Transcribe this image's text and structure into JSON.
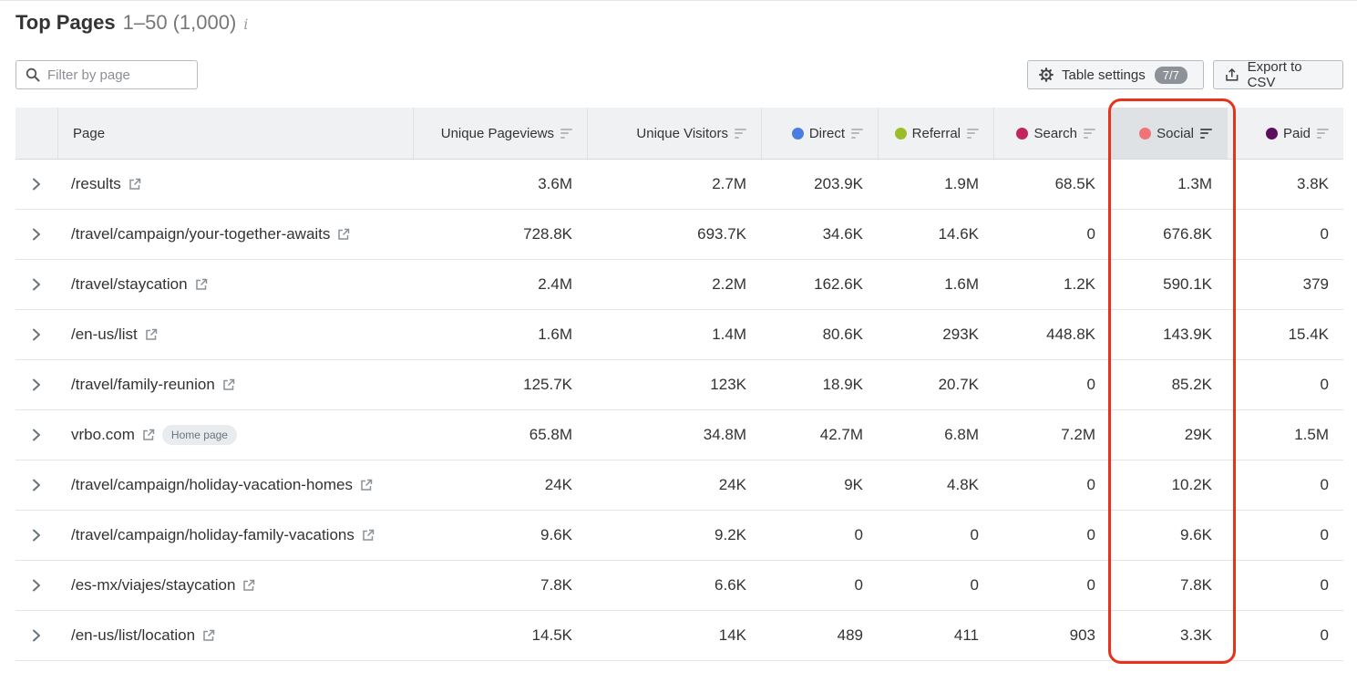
{
  "header": {
    "title": "Top Pages",
    "range": "1–50",
    "count": "(1,000)",
    "info_glyph": "i"
  },
  "filter": {
    "placeholder": "Filter by page"
  },
  "toolbar": {
    "table_settings_label": "Table settings",
    "table_settings_badge": "7/7",
    "export_label": "Export to CSV"
  },
  "columns": {
    "page": "Page",
    "unique_pageviews": "Unique Pageviews",
    "unique_visitors": "Unique Visitors",
    "direct": "Direct",
    "referral": "Referral",
    "search": "Search",
    "social": "Social",
    "paid": "Paid"
  },
  "colors": {
    "direct": "#4a7de0",
    "referral": "#9cbd2a",
    "search": "#c2245c",
    "social": "#f07378",
    "paid": "#5b0f5c",
    "highlight": "#e8331c"
  },
  "active_sort_column": "social",
  "rows": [
    {
      "page": "/results",
      "badge": "",
      "uv_pageviews": "3.6M",
      "uv_visitors": "2.7M",
      "direct": "203.9K",
      "referral": "1.9M",
      "search": "68.5K",
      "social": "1.3M",
      "paid": "3.8K"
    },
    {
      "page": "/travel/campaign/your-together-awaits",
      "badge": "",
      "uv_pageviews": "728.8K",
      "uv_visitors": "693.7K",
      "direct": "34.6K",
      "referral": "14.6K",
      "search": "0",
      "social": "676.8K",
      "paid": "0"
    },
    {
      "page": "/travel/staycation",
      "badge": "",
      "uv_pageviews": "2.4M",
      "uv_visitors": "2.2M",
      "direct": "162.6K",
      "referral": "1.6M",
      "search": "1.2K",
      "social": "590.1K",
      "paid": "379"
    },
    {
      "page": "/en-us/list",
      "badge": "",
      "uv_pageviews": "1.6M",
      "uv_visitors": "1.4M",
      "direct": "80.6K",
      "referral": "293K",
      "search": "448.8K",
      "social": "143.9K",
      "paid": "15.4K"
    },
    {
      "page": "/travel/family-reunion",
      "badge": "",
      "uv_pageviews": "125.7K",
      "uv_visitors": "123K",
      "direct": "18.9K",
      "referral": "20.7K",
      "search": "0",
      "social": "85.2K",
      "paid": "0"
    },
    {
      "page": "vrbo.com",
      "badge": "Home page",
      "uv_pageviews": "65.8M",
      "uv_visitors": "34.8M",
      "direct": "42.7M",
      "referral": "6.8M",
      "search": "7.2M",
      "social": "29K",
      "paid": "1.5M"
    },
    {
      "page": "/travel/campaign/holiday-vacation-homes",
      "badge": "",
      "uv_pageviews": "24K",
      "uv_visitors": "24K",
      "direct": "9K",
      "referral": "4.8K",
      "search": "0",
      "social": "10.2K",
      "paid": "0"
    },
    {
      "page": "/travel/campaign/holiday-family-vacations",
      "badge": "",
      "uv_pageviews": "9.6K",
      "uv_visitors": "9.2K",
      "direct": "0",
      "referral": "0",
      "search": "0",
      "social": "9.6K",
      "paid": "0"
    },
    {
      "page": "/es-mx/viajes/staycation",
      "badge": "",
      "uv_pageviews": "7.8K",
      "uv_visitors": "6.6K",
      "direct": "0",
      "referral": "0",
      "search": "0",
      "social": "7.8K",
      "paid": "0"
    },
    {
      "page": "/en-us/list/location",
      "badge": "",
      "uv_pageviews": "14.5K",
      "uv_visitors": "14K",
      "direct": "489",
      "referral": "411",
      "search": "903",
      "social": "3.3K",
      "paid": "0"
    }
  ]
}
